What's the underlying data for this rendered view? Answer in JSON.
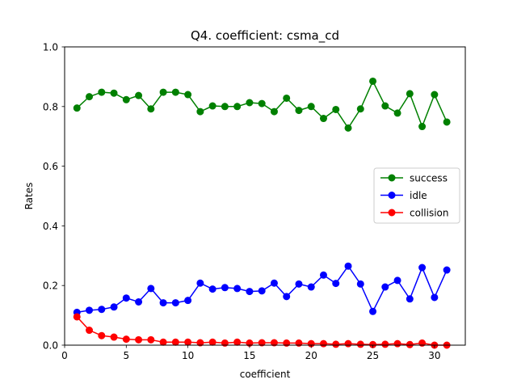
{
  "chart_data": {
    "type": "line",
    "title": "Q4. coefficient: csma_cd",
    "xlabel": "coefficient",
    "ylabel": "Rates",
    "xlim": [
      0,
      32.5
    ],
    "ylim": [
      0.0,
      1.0
    ],
    "xticks": [
      0,
      5,
      10,
      15,
      20,
      25,
      30
    ],
    "yticks": [
      0.0,
      0.2,
      0.4,
      0.6,
      0.8,
      1.0
    ],
    "ytick_labels": [
      "0.0",
      "0.2",
      "0.4",
      "0.6",
      "0.8",
      "1.0"
    ],
    "grid": false,
    "legend_position": "center-right",
    "x": [
      1,
      2,
      3,
      4,
      5,
      6,
      7,
      8,
      9,
      10,
      11,
      12,
      13,
      14,
      15,
      16,
      17,
      18,
      19,
      20,
      21,
      22,
      23,
      24,
      25,
      26,
      27,
      28,
      29,
      30,
      31
    ],
    "series": [
      {
        "name": "success",
        "color": "#008000",
        "values": [
          0.795,
          0.833,
          0.848,
          0.845,
          0.823,
          0.837,
          0.792,
          0.848,
          0.848,
          0.84,
          0.783,
          0.802,
          0.8,
          0.8,
          0.813,
          0.81,
          0.783,
          0.828,
          0.787,
          0.8,
          0.76,
          0.79,
          0.728,
          0.792,
          0.885,
          0.802,
          0.778,
          0.843,
          0.733,
          0.84,
          0.748
        ]
      },
      {
        "name": "idle",
        "color": "#0000ff",
        "values": [
          0.11,
          0.117,
          0.12,
          0.128,
          0.158,
          0.145,
          0.19,
          0.142,
          0.142,
          0.15,
          0.208,
          0.188,
          0.193,
          0.19,
          0.18,
          0.182,
          0.208,
          0.163,
          0.205,
          0.195,
          0.235,
          0.207,
          0.265,
          0.205,
          0.113,
          0.195,
          0.217,
          0.155,
          0.26,
          0.16,
          0.252
        ]
      },
      {
        "name": "collision",
        "color": "#ff0000",
        "values": [
          0.095,
          0.05,
          0.032,
          0.027,
          0.02,
          0.018,
          0.018,
          0.01,
          0.01,
          0.01,
          0.008,
          0.01,
          0.007,
          0.01,
          0.007,
          0.008,
          0.008,
          0.007,
          0.007,
          0.005,
          0.005,
          0.003,
          0.005,
          0.003,
          0.002,
          0.003,
          0.005,
          0.002,
          0.007,
          0.0,
          0.0
        ]
      }
    ]
  }
}
